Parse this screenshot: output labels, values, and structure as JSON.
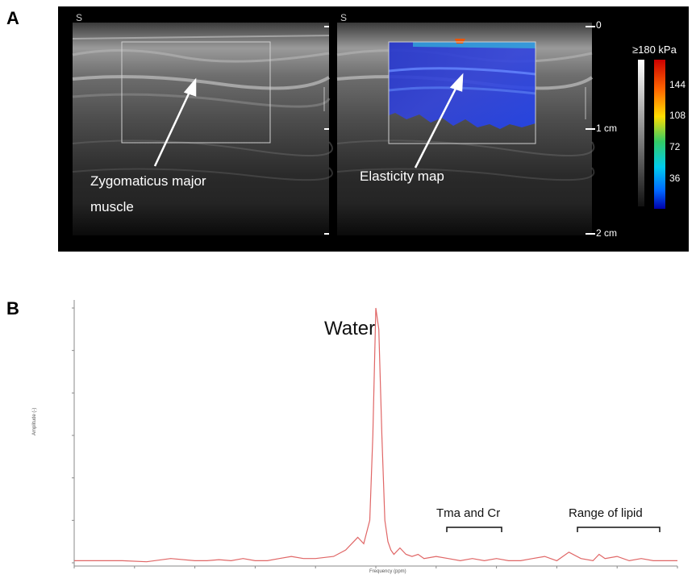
{
  "panels": {
    "a": {
      "label": "A"
    },
    "b": {
      "label": "B"
    }
  },
  "ultrasound": {
    "left_annotation_line1": "Zygomaticus major",
    "left_annotation_line2": "muscle",
    "right_annotation": "Elasticity map",
    "depth_marks": [
      "0",
      "1 cm",
      "2 cm"
    ],
    "colorbar": {
      "title": "≥180 kPa",
      "ticks": [
        "144",
        "108",
        "72",
        "36"
      ]
    }
  },
  "spectrum": {
    "peak_label": "Water",
    "bracket1_label": "Tma and Cr",
    "bracket2_label": "Range of lipid",
    "xlabel": "Frequency (ppm)",
    "ylabel": "Amplitude (-)"
  },
  "chart_data": {
    "type": "line",
    "title": "",
    "xlabel": "Frequency (ppm)",
    "ylabel": "Amplitude (-)",
    "x_reversed": true,
    "xlim": [
      10,
      0
    ],
    "ylim": [
      0,
      0.012
    ],
    "series": [
      {
        "color": "#e06666",
        "x": [
          10,
          9.6,
          9.2,
          8.8,
          8.4,
          8.0,
          7.8,
          7.6,
          7.4,
          7.2,
          7.0,
          6.8,
          6.6,
          6.4,
          6.2,
          6.0,
          5.7,
          5.5,
          5.3,
          5.2,
          5.1,
          5.05,
          5.0,
          4.95,
          4.9,
          4.85,
          4.8,
          4.75,
          4.7,
          4.6,
          4.5,
          4.4,
          4.3,
          4.2,
          4.0,
          3.8,
          3.6,
          3.4,
          3.2,
          3.0,
          2.8,
          2.6,
          2.4,
          2.2,
          2.0,
          1.8,
          1.6,
          1.4,
          1.3,
          1.2,
          1.0,
          0.8,
          0.6,
          0.4,
          0.0
        ],
        "y": [
          0.0001,
          0.0001,
          0.0001,
          5e-05,
          0.0002,
          0.0001,
          0.0001,
          0.00015,
          0.0001,
          0.0002,
          0.0001,
          0.0001,
          0.0002,
          0.0003,
          0.0002,
          0.0002,
          0.0003,
          0.0006,
          0.0012,
          0.0009,
          0.002,
          0.006,
          0.012,
          0.011,
          0.006,
          0.002,
          0.001,
          0.0006,
          0.0004,
          0.0007,
          0.0004,
          0.0003,
          0.0004,
          0.0002,
          0.0003,
          0.0002,
          0.0001,
          0.0002,
          0.0001,
          0.0002,
          0.0001,
          0.0001,
          0.0002,
          0.0003,
          0.0001,
          0.0005,
          0.0002,
          0.0001,
          0.0004,
          0.0002,
          0.0003,
          0.0001,
          0.0002,
          0.0001,
          0.0001
        ]
      }
    ]
  }
}
